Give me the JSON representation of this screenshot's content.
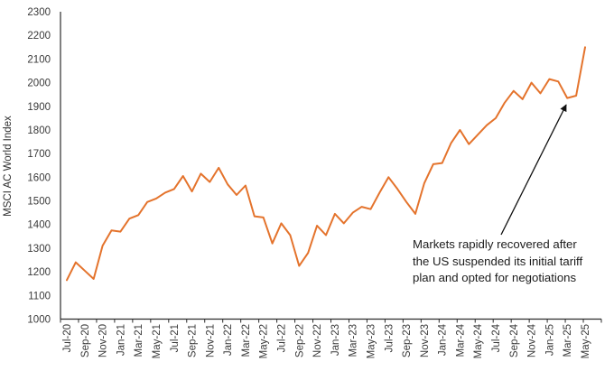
{
  "chart_data": {
    "type": "line",
    "title": "",
    "ylabel": "MSCI AC World Index",
    "xlabel": "",
    "ylim": [
      1000,
      2300
    ],
    "ytick_step": 100,
    "grid": false,
    "legend": "none",
    "xtick_every": 2,
    "x": [
      "Jul-20",
      "Aug-20",
      "Sep-20",
      "Oct-20",
      "Nov-20",
      "Dec-20",
      "Jan-21",
      "Feb-21",
      "Mar-21",
      "Apr-21",
      "May-21",
      "Jun-21",
      "Jul-21",
      "Aug-21",
      "Sep-21",
      "Oct-21",
      "Nov-21",
      "Dec-21",
      "Jan-22",
      "Feb-22",
      "Mar-22",
      "Apr-22",
      "May-22",
      "Jun-22",
      "Jul-22",
      "Aug-22",
      "Sep-22",
      "Oct-22",
      "Nov-22",
      "Dec-22",
      "Jan-23",
      "Feb-23",
      "Mar-23",
      "Apr-23",
      "May-23",
      "Jun-23",
      "Jul-23",
      "Aug-23",
      "Sep-23",
      "Oct-23",
      "Nov-23",
      "Dec-23",
      "Jan-24",
      "Feb-24",
      "Mar-24",
      "Apr-24",
      "May-24",
      "Jun-24",
      "Jul-24",
      "Aug-24",
      "Sep-24",
      "Oct-24",
      "Nov-24",
      "Dec-24",
      "Jan-25",
      "Feb-25",
      "Mar-25",
      "Apr-25",
      "May-25"
    ],
    "series": [
      {
        "name": "MSCI AC World Index",
        "color": "#E4732C",
        "values": [
          1165,
          1240,
          1205,
          1170,
          1310,
          1375,
          1370,
          1425,
          1440,
          1495,
          1510,
          1535,
          1550,
          1605,
          1540,
          1615,
          1580,
          1640,
          1570,
          1525,
          1565,
          1435,
          1430,
          1320,
          1405,
          1355,
          1225,
          1280,
          1395,
          1355,
          1445,
          1405,
          1450,
          1475,
          1465,
          1535,
          1600,
          1550,
          1495,
          1445,
          1575,
          1655,
          1660,
          1745,
          1800,
          1740,
          1780,
          1820,
          1850,
          1915,
          1965,
          1930,
          2000,
          1955,
          2015,
          2005,
          1935,
          1945,
          2150
        ]
      }
    ],
    "annotation": {
      "lines": [
        "Markets rapidly recovered after",
        "the US suspended its initial tariff",
        "plan and opted for negotiations"
      ],
      "points_to": "Apr-25"
    }
  },
  "colors": {
    "line": "#E4732C",
    "axis": "#2b2b2b",
    "tick_text": "#3a3a3a",
    "annotation_text": "#1c1c1c",
    "arrow": "#111111",
    "background": "#ffffff"
  }
}
